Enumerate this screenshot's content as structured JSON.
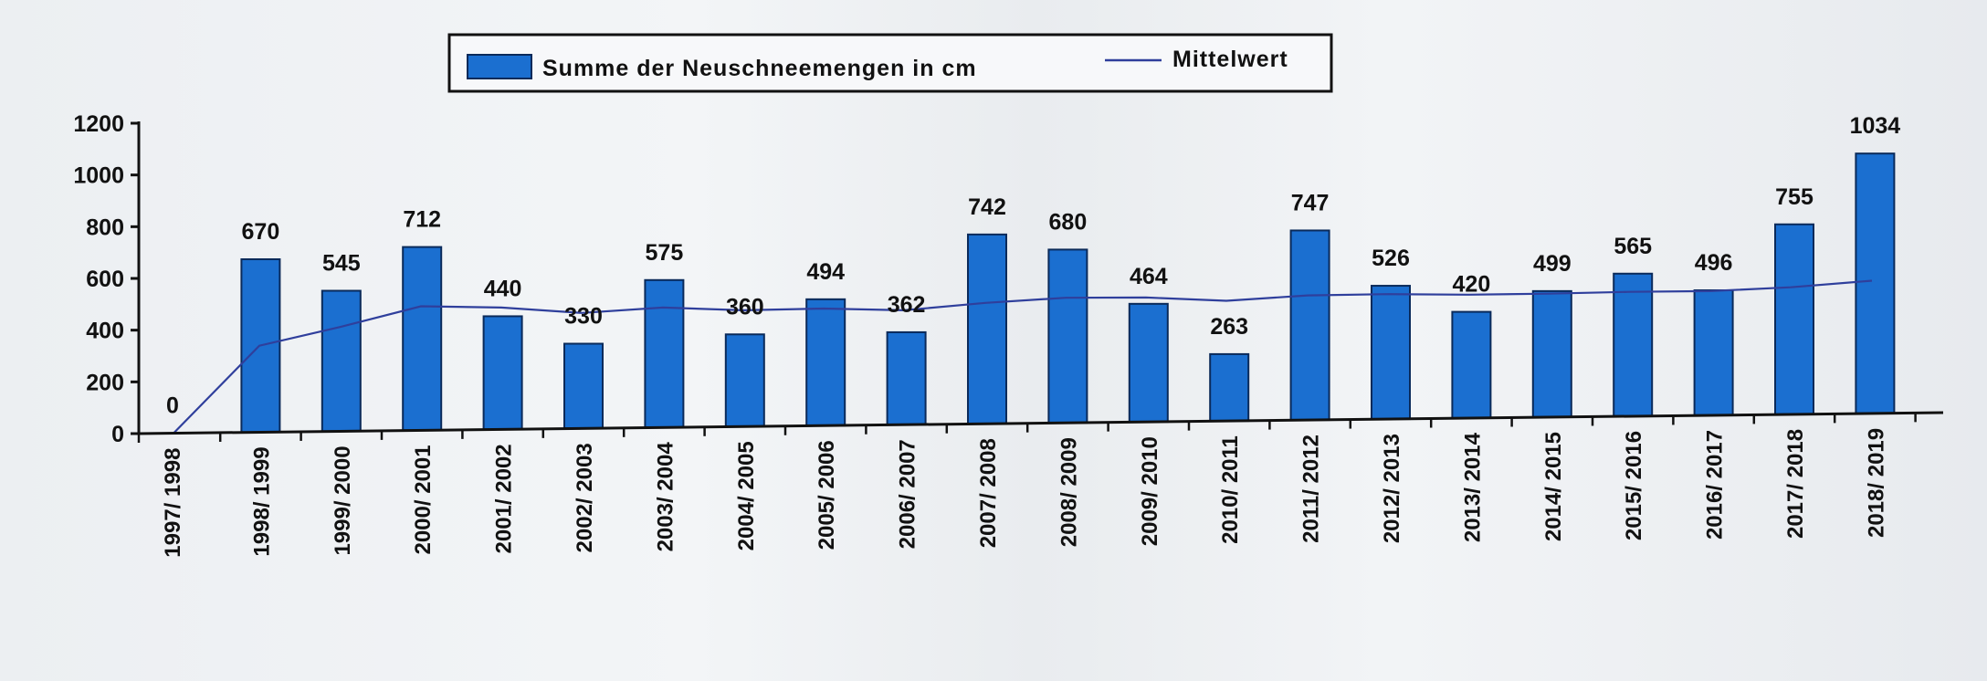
{
  "chart_data": {
    "type": "bar",
    "categories": [
      "1997/ 1998",
      "1998/ 1999",
      "1999/ 2000",
      "2000/ 2001",
      "2001/ 2002",
      "2002/ 2003",
      "2003/ 2004",
      "2004/ 2005",
      "2005/ 2006",
      "2006/ 2007",
      "2007/ 2008",
      "2008/ 2009",
      "2009/ 2010",
      "2010/ 2011",
      "2011/ 2012",
      "2012/ 2013",
      "2013/ 2014",
      "2014/ 2015",
      "2015/ 2016",
      "2016/ 2017",
      "2017/ 2018",
      "2018/ 2019"
    ],
    "series": [
      {
        "name": "Summe der Neuschneemengen in cm",
        "type": "bar",
        "values": [
          0,
          670,
          545,
          712,
          440,
          330,
          575,
          360,
          494,
          362,
          742,
          680,
          464,
          263,
          747,
          526,
          420,
          499,
          565,
          496,
          755,
          1034
        ]
      },
      {
        "name": "Mittelwert",
        "type": "line",
        "values": [
          0,
          335,
          405,
          482,
          474,
          450,
          468,
          454,
          458,
          448,
          474,
          491,
          489,
          473,
          491,
          493,
          488,
          489,
          493,
          493,
          505,
          528
        ]
      }
    ],
    "title": "",
    "xlabel": "",
    "ylabel": "",
    "ylim": [
      0,
      1200
    ],
    "yticks": [
      0,
      200,
      400,
      600,
      800,
      1000,
      1200
    ],
    "grid": false,
    "legend": "top-center",
    "colors": {
      "bar": "#1b6fd0",
      "bar_stroke": "#0a2a5a",
      "line": "#2f3f9c",
      "axis": "#111111"
    }
  }
}
